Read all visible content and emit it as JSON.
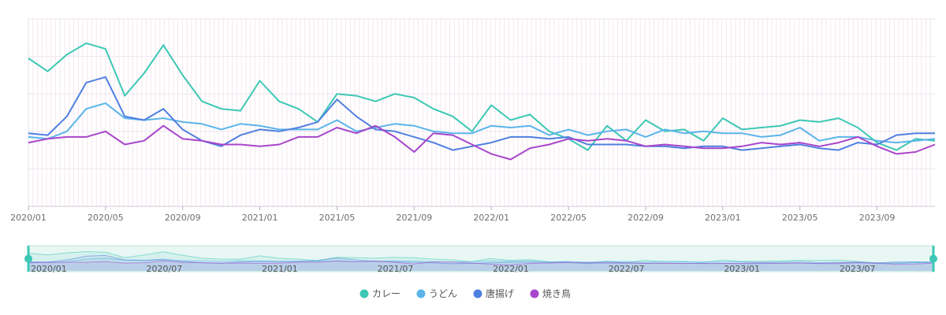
{
  "chart_data": {
    "type": "line",
    "x": [
      "2020/01",
      "2020/02",
      "2020/03",
      "2020/04",
      "2020/05",
      "2020/06",
      "2020/07",
      "2020/08",
      "2020/09",
      "2020/10",
      "2020/11",
      "2020/12",
      "2021/01",
      "2021/02",
      "2021/03",
      "2021/04",
      "2021/05",
      "2021/06",
      "2021/07",
      "2021/08",
      "2021/09",
      "2021/10",
      "2021/11",
      "2021/12",
      "2022/01",
      "2022/02",
      "2022/03",
      "2022/04",
      "2022/05",
      "2022/06",
      "2022/07",
      "2022/08",
      "2022/09",
      "2022/10",
      "2022/11",
      "2022/12",
      "2023/01",
      "2023/02",
      "2023/03",
      "2023/04",
      "2023/05",
      "2023/06",
      "2023/07",
      "2023/08",
      "2023/09",
      "2023/10",
      "2023/11",
      "2023/12"
    ],
    "ylim": [
      0,
      100
    ],
    "series": [
      {
        "name": "カレー",
        "color": "#3cc8b4",
        "values": [
          79,
          72,
          81,
          87,
          84,
          59,
          71,
          86,
          70,
          56,
          52,
          51,
          67,
          56,
          52,
          45,
          60,
          59,
          56,
          60,
          58,
          52,
          48,
          40,
          54,
          46,
          49,
          40,
          36,
          30,
          43,
          35,
          46,
          40,
          41,
          35,
          47,
          41,
          42,
          43,
          46,
          45,
          47,
          42,
          34,
          30,
          36,
          35
        ]
      },
      {
        "name": "うどん",
        "color": "#5ab4ea",
        "values": [
          37,
          36,
          40,
          52,
          55,
          47,
          46,
          47,
          45,
          44,
          41,
          44,
          43,
          41,
          41,
          41,
          46,
          40,
          42,
          44,
          43,
          40,
          39,
          39,
          43,
          42,
          43,
          38,
          41,
          38,
          40,
          41,
          37,
          41,
          39,
          40,
          39,
          39,
          37,
          38,
          42,
          35,
          37,
          37,
          35,
          34,
          35,
          36
        ]
      },
      {
        "name": "唐揚げ",
        "color": "#4f7fe0",
        "values": [
          39,
          38,
          48,
          66,
          69,
          48,
          46,
          52,
          41,
          35,
          32,
          38,
          41,
          40,
          42,
          45,
          57,
          48,
          41,
          40,
          37,
          34,
          30,
          32,
          34,
          37,
          37,
          36,
          37,
          33,
          33,
          33,
          32,
          32,
          31,
          32,
          32,
          30,
          31,
          32,
          33,
          31,
          30,
          34,
          33,
          38,
          39,
          39
        ]
      },
      {
        "name": "焼き鳥",
        "color": "#a845cc",
        "values": [
          34,
          36,
          37,
          37,
          40,
          33,
          35,
          43,
          36,
          35,
          33,
          33,
          32,
          33,
          37,
          37,
          42,
          39,
          43,
          37,
          29,
          39,
          38,
          33,
          28,
          25,
          31,
          33,
          36,
          35,
          36,
          35,
          32,
          33,
          32,
          31,
          31,
          32,
          34,
          33,
          34,
          32,
          34,
          37,
          32,
          28,
          29,
          33
        ]
      }
    ],
    "x_tick_labels": [
      "2020/01",
      "2020/05",
      "2020/09",
      "2021/01",
      "2021/05",
      "2021/09",
      "2022/01",
      "2022/05",
      "2022/09",
      "2023/01",
      "2023/05",
      "2023/09"
    ],
    "zoom_tick_labels": [
      "2020/01",
      "2020/07",
      "2021/01",
      "2021/07",
      "2022/01",
      "2022/07",
      "2023/01",
      "2023/07"
    ],
    "legend": [
      {
        "name": "カレー",
        "color": "#3cc8b4"
      },
      {
        "name": "うどん",
        "color": "#5ab4ea"
      },
      {
        "name": "唐揚げ",
        "color": "#4f7fe0"
      },
      {
        "name": "焼き鳥",
        "color": "#a845cc"
      }
    ],
    "grid": true,
    "legend_placement": "bottom-center",
    "title": "",
    "xlabel": "",
    "ylabel": ""
  }
}
